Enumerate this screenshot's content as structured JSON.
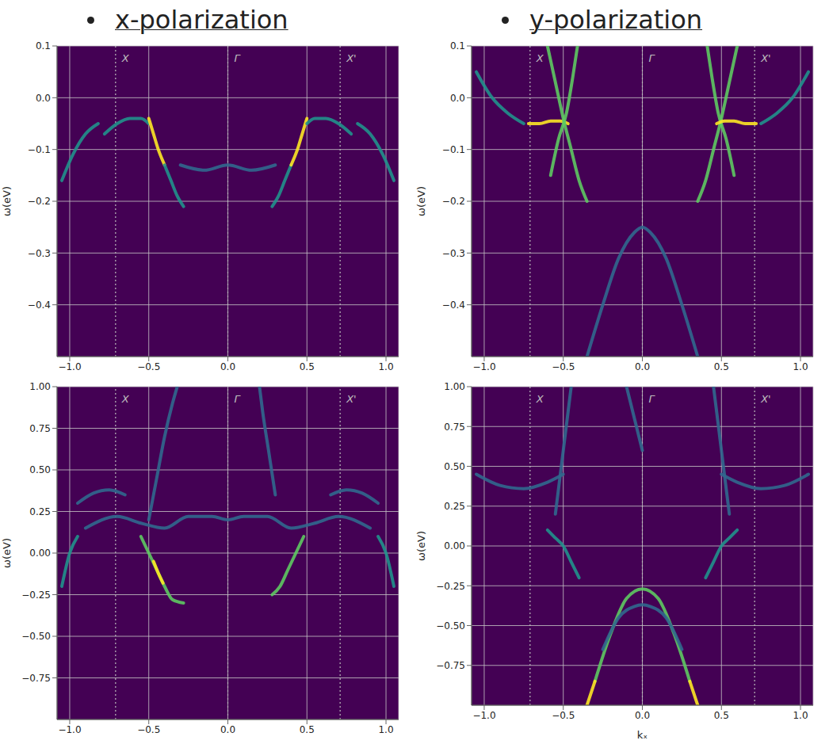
{
  "chart_data": [
    {
      "type": "line",
      "title": "x-polarization",
      "y_label": "ω(eV)",
      "grid": true,
      "xlim": [
        -1.08,
        1.08
      ],
      "xticks": [
        {
          "value": -1.0,
          "label": "−1.0"
        },
        {
          "value": -0.5,
          "label": "−0.5"
        },
        {
          "value": 0,
          "label": "0.0"
        },
        {
          "value": 0.5,
          "label": "0.5"
        },
        {
          "value": 1.0,
          "label": "1.0"
        }
      ],
      "ylim": [
        -0.5,
        0.1
      ],
      "yticks": [
        {
          "value": -0.4,
          "label": "−0.4"
        },
        {
          "value": -0.3,
          "label": "−0.3"
        },
        {
          "value": -0.2,
          "label": "−0.2"
        },
        {
          "value": -0.1,
          "label": "−0.1"
        },
        {
          "value": 0,
          "label": "0.0"
        },
        {
          "value": 0.1,
          "label": "0.1"
        }
      ],
      "annotations": [
        {
          "text": "X",
          "x": -0.71
        },
        {
          "text": "Γ",
          "x": 0
        },
        {
          "text": "X'",
          "x": 0.71
        }
      ],
      "series": [
        {
          "color": "#21918c",
          "x": [
            -1.05,
            -0.98,
            -0.9,
            -0.82
          ],
          "values": [
            -0.16,
            -0.11,
            -0.07,
            -0.05
          ]
        },
        {
          "color": "#21918c",
          "x": [
            -0.78,
            -0.7,
            -0.62,
            -0.55,
            -0.5
          ],
          "values": [
            -0.07,
            -0.05,
            -0.04,
            -0.04,
            -0.05
          ]
        },
        {
          "color": "#fde725",
          "x": [
            -0.5,
            -0.47,
            -0.44,
            -0.4
          ],
          "values": [
            -0.04,
            -0.07,
            -0.1,
            -0.13
          ]
        },
        {
          "color": "#21918c",
          "x": [
            -0.4,
            -0.36,
            -0.32,
            -0.28
          ],
          "values": [
            -0.13,
            -0.16,
            -0.19,
            -0.21
          ]
        },
        {
          "color": "#31688e",
          "x": [
            -0.3,
            -0.15,
            0,
            0.15,
            0.3
          ],
          "values": [
            -0.13,
            -0.14,
            -0.13,
            -0.14,
            -0.13
          ]
        },
        {
          "color": "#21918c",
          "x": [
            0.28,
            0.32,
            0.36,
            0.4
          ],
          "values": [
            -0.21,
            -0.19,
            -0.16,
            -0.13
          ]
        },
        {
          "color": "#fde725",
          "x": [
            0.4,
            0.44,
            0.47,
            0.5
          ],
          "values": [
            -0.13,
            -0.1,
            -0.07,
            -0.04
          ]
        },
        {
          "color": "#21918c",
          "x": [
            0.5,
            0.55,
            0.62,
            0.7,
            0.78
          ],
          "values": [
            -0.05,
            -0.04,
            -0.04,
            -0.05,
            -0.07
          ]
        },
        {
          "color": "#21918c",
          "x": [
            0.82,
            0.9,
            0.98,
            1.05
          ],
          "values": [
            -0.05,
            -0.07,
            -0.11,
            -0.16
          ]
        }
      ]
    },
    {
      "type": "line",
      "title": "y-polarization",
      "y_label": "ω(eV)",
      "grid": true,
      "xlim": [
        -1.08,
        1.08
      ],
      "xticks": [
        {
          "value": -1.0,
          "label": "−1.0"
        },
        {
          "value": -0.5,
          "label": "−0.5"
        },
        {
          "value": 0,
          "label": "0.0"
        },
        {
          "value": 0.5,
          "label": "0.5"
        },
        {
          "value": 1.0,
          "label": "1.0"
        }
      ],
      "ylim": [
        -0.5,
        0.1
      ],
      "yticks": [
        {
          "value": -0.4,
          "label": "−0.4"
        },
        {
          "value": -0.3,
          "label": "−0.3"
        },
        {
          "value": -0.2,
          "label": "−0.2"
        },
        {
          "value": -0.1,
          "label": "−0.1"
        },
        {
          "value": 0,
          "label": "0.0"
        },
        {
          "value": 0.1,
          "label": "0.1"
        }
      ],
      "annotations": [
        {
          "text": "X",
          "x": -0.71
        },
        {
          "text": "Γ",
          "x": 0
        },
        {
          "text": "X'",
          "x": 0.71
        }
      ],
      "series": [
        {
          "color": "#21918c",
          "x": [
            -1.05,
            -0.95,
            -0.85,
            -0.75
          ],
          "values": [
            0.05,
            0.0,
            -0.03,
            -0.05
          ]
        },
        {
          "color": "#fde725",
          "x": [
            -0.72,
            -0.65,
            -0.58,
            -0.52,
            -0.47
          ],
          "values": [
            -0.05,
            -0.05,
            -0.045,
            -0.045,
            -0.05
          ]
        },
        {
          "color": "#5ec962",
          "x": [
            -0.58,
            -0.53,
            -0.48,
            -0.44,
            -0.41
          ],
          "values": [
            -0.15,
            -0.08,
            -0.03,
            0.04,
            0.1
          ]
        },
        {
          "color": "#5ec962",
          "x": [
            -0.6,
            -0.55,
            -0.5,
            -0.45,
            -0.4,
            -0.35
          ],
          "values": [
            0.1,
            0.03,
            -0.04,
            -0.1,
            -0.16,
            -0.2
          ]
        },
        {
          "color": "#31688e",
          "x": [
            -0.35,
            -0.25,
            -0.15,
            -0.05,
            0,
            0.05,
            0.15,
            0.25,
            0.35
          ],
          "values": [
            -0.5,
            -0.4,
            -0.31,
            -0.26,
            -0.25,
            -0.26,
            -0.31,
            -0.4,
            -0.5
          ]
        },
        {
          "color": "#5ec962",
          "x": [
            0.35,
            0.4,
            0.45,
            0.5,
            0.55,
            0.6
          ],
          "values": [
            -0.2,
            -0.16,
            -0.1,
            -0.04,
            0.03,
            0.1
          ]
        },
        {
          "color": "#5ec962",
          "x": [
            0.41,
            0.44,
            0.48,
            0.53,
            0.58
          ],
          "values": [
            0.1,
            0.04,
            -0.03,
            -0.08,
            -0.15
          ]
        },
        {
          "color": "#fde725",
          "x": [
            0.47,
            0.52,
            0.58,
            0.65,
            0.72
          ],
          "values": [
            -0.05,
            -0.045,
            -0.045,
            -0.05,
            -0.05
          ]
        },
        {
          "color": "#21918c",
          "x": [
            0.75,
            0.85,
            0.95,
            1.05
          ],
          "values": [
            -0.05,
            -0.03,
            0.0,
            0.05
          ]
        }
      ]
    },
    {
      "type": "line",
      "y_label": "ω(eV)",
      "grid": true,
      "xlim": [
        -1.08,
        1.08
      ],
      "xticks": [
        {
          "value": -1.0,
          "label": "−1.0"
        },
        {
          "value": -0.5,
          "label": "−0.5"
        },
        {
          "value": 0,
          "label": "0.0"
        },
        {
          "value": 0.5,
          "label": "0.5"
        },
        {
          "value": 1.0,
          "label": "1.0"
        }
      ],
      "ylim": [
        -1.0,
        1.0
      ],
      "yticks": [
        {
          "value": -0.75,
          "label": "−0.75"
        },
        {
          "value": -0.5,
          "label": "−0.50"
        },
        {
          "value": -0.25,
          "label": "−0.25"
        },
        {
          "value": 0,
          "label": "0.00"
        },
        {
          "value": 0.25,
          "label": "0.25"
        },
        {
          "value": 0.5,
          "label": "0.50"
        },
        {
          "value": 0.75,
          "label": "0.75"
        },
        {
          "value": 1.0,
          "label": "1.00"
        }
      ],
      "annotations": [
        {
          "text": "X",
          "x": -0.71
        },
        {
          "text": "Γ",
          "x": 0
        },
        {
          "text": "X'",
          "x": 0.71
        }
      ],
      "series": [
        {
          "color": "#21918c",
          "x": [
            -1.05,
            -1.0,
            -0.95
          ],
          "values": [
            -0.2,
            0.0,
            0.1
          ]
        },
        {
          "color": "#31688e",
          "x": [
            -0.95,
            -0.85,
            -0.75,
            -0.65
          ],
          "values": [
            0.3,
            0.36,
            0.38,
            0.35
          ]
        },
        {
          "color": "#31688e",
          "x": [
            -0.9,
            -0.7,
            -0.55,
            -0.4,
            -0.25,
            -0.1,
            0,
            0.1,
            0.25,
            0.4,
            0.55,
            0.7,
            0.9
          ],
          "values": [
            0.15,
            0.22,
            0.18,
            0.15,
            0.22,
            0.22,
            0.2,
            0.22,
            0.22,
            0.15,
            0.18,
            0.22,
            0.15
          ]
        },
        {
          "color": "#5ec962",
          "x": [
            -0.55,
            -0.5,
            -0.45,
            -0.4,
            -0.35,
            -0.28
          ],
          "values": [
            0.1,
            0.0,
            -0.1,
            -0.2,
            -0.28,
            -0.3
          ]
        },
        {
          "color": "#fde725",
          "x": [
            -0.47,
            -0.44,
            -0.41
          ],
          "values": [
            -0.05,
            -0.12,
            -0.18
          ]
        },
        {
          "color": "#5ec962",
          "x": [
            0.28,
            0.33,
            0.38,
            0.43,
            0.48
          ],
          "values": [
            -0.25,
            -0.2,
            -0.1,
            0.0,
            0.1
          ]
        },
        {
          "color": "#31688e",
          "x": [
            -0.5,
            -0.45,
            -0.4,
            -0.35,
            -0.32
          ],
          "values": [
            0.2,
            0.45,
            0.7,
            0.9,
            1.0
          ]
        },
        {
          "color": "#31688e",
          "x": [
            0.3,
            0.26,
            0.22,
            0.2
          ],
          "values": [
            0.35,
            0.6,
            0.85,
            1.0
          ]
        },
        {
          "color": "#31688e",
          "x": [
            0.65,
            0.75,
            0.85,
            0.95
          ],
          "values": [
            0.35,
            0.38,
            0.36,
            0.3
          ]
        },
        {
          "color": "#21918c",
          "x": [
            0.95,
            1.0,
            1.05
          ],
          "values": [
            0.1,
            0.0,
            -0.2
          ]
        }
      ]
    },
    {
      "type": "line",
      "y_label": "ω(eV)",
      "x_label": "kₓ",
      "grid": true,
      "xlim": [
        -1.08,
        1.08
      ],
      "xticks": [
        {
          "value": -1.0,
          "label": "−1.0"
        },
        {
          "value": -0.5,
          "label": "−0.5"
        },
        {
          "value": 0,
          "label": "0.0"
        },
        {
          "value": 0.5,
          "label": "0.5"
        },
        {
          "value": 1.0,
          "label": "1.0"
        }
      ],
      "ylim": [
        -1.0,
        1.0
      ],
      "yticks": [
        {
          "value": -0.75,
          "label": "−0.75"
        },
        {
          "value": -0.5,
          "label": "−0.50"
        },
        {
          "value": -0.25,
          "label": "−0.25"
        },
        {
          "value": 0,
          "label": "0.00"
        },
        {
          "value": 0.25,
          "label": "0.25"
        },
        {
          "value": 0.5,
          "label": "0.50"
        },
        {
          "value": 0.75,
          "label": "0.75"
        },
        {
          "value": 1.0,
          "label": "1.00"
        }
      ],
      "annotations": [
        {
          "text": "X",
          "x": -0.71
        },
        {
          "text": "Γ",
          "x": 0
        },
        {
          "text": "X'",
          "x": 0.71
        }
      ],
      "series": [
        {
          "color": "#5ec962",
          "x": [
            -0.3,
            -0.2,
            -0.1,
            0,
            0.1,
            0.2,
            0.3
          ],
          "values": [
            -0.85,
            -0.55,
            -0.33,
            -0.27,
            -0.33,
            -0.55,
            -0.85
          ]
        },
        {
          "color": "#fde725",
          "x": [
            -0.35,
            -0.3
          ],
          "values": [
            -1.0,
            -0.85
          ]
        },
        {
          "color": "#fde725",
          "x": [
            0.3,
            0.35
          ],
          "values": [
            -0.85,
            -1.0
          ]
        },
        {
          "color": "#31688e",
          "x": [
            -0.25,
            -0.15,
            -0.05,
            0,
            0.05,
            0.15,
            0.25
          ],
          "values": [
            -0.65,
            -0.45,
            -0.38,
            -0.37,
            -0.38,
            -0.45,
            -0.65
          ]
        },
        {
          "color": "#31688e",
          "x": [
            -1.05,
            -0.9,
            -0.75,
            -0.6,
            -0.5
          ],
          "values": [
            0.45,
            0.38,
            0.36,
            0.4,
            0.45
          ]
        },
        {
          "color": "#31688e",
          "x": [
            0.5,
            0.6,
            0.75,
            0.9,
            1.05
          ],
          "values": [
            0.45,
            0.4,
            0.36,
            0.38,
            0.45
          ]
        },
        {
          "color": "#31688e",
          "x": [
            -0.55,
            -0.5,
            -0.45
          ],
          "values": [
            0.2,
            0.6,
            1.0
          ]
        },
        {
          "color": "#31688e",
          "x": [
            -0.1,
            -0.05,
            0.0
          ],
          "values": [
            1.0,
            0.8,
            0.6
          ]
        },
        {
          "color": "#31688e",
          "x": [
            0.45,
            0.5,
            0.55
          ],
          "values": [
            1.0,
            0.6,
            0.2
          ]
        },
        {
          "color": "#21918c",
          "x": [
            -0.6,
            -0.55,
            -0.5,
            -0.45,
            -0.4
          ],
          "values": [
            0.1,
            0.05,
            0.0,
            -0.1,
            -0.2
          ]
        },
        {
          "color": "#21918c",
          "x": [
            0.4,
            0.45,
            0.5,
            0.55,
            0.6
          ],
          "values": [
            -0.2,
            -0.1,
            0.0,
            0.05,
            0.1
          ]
        }
      ]
    }
  ]
}
